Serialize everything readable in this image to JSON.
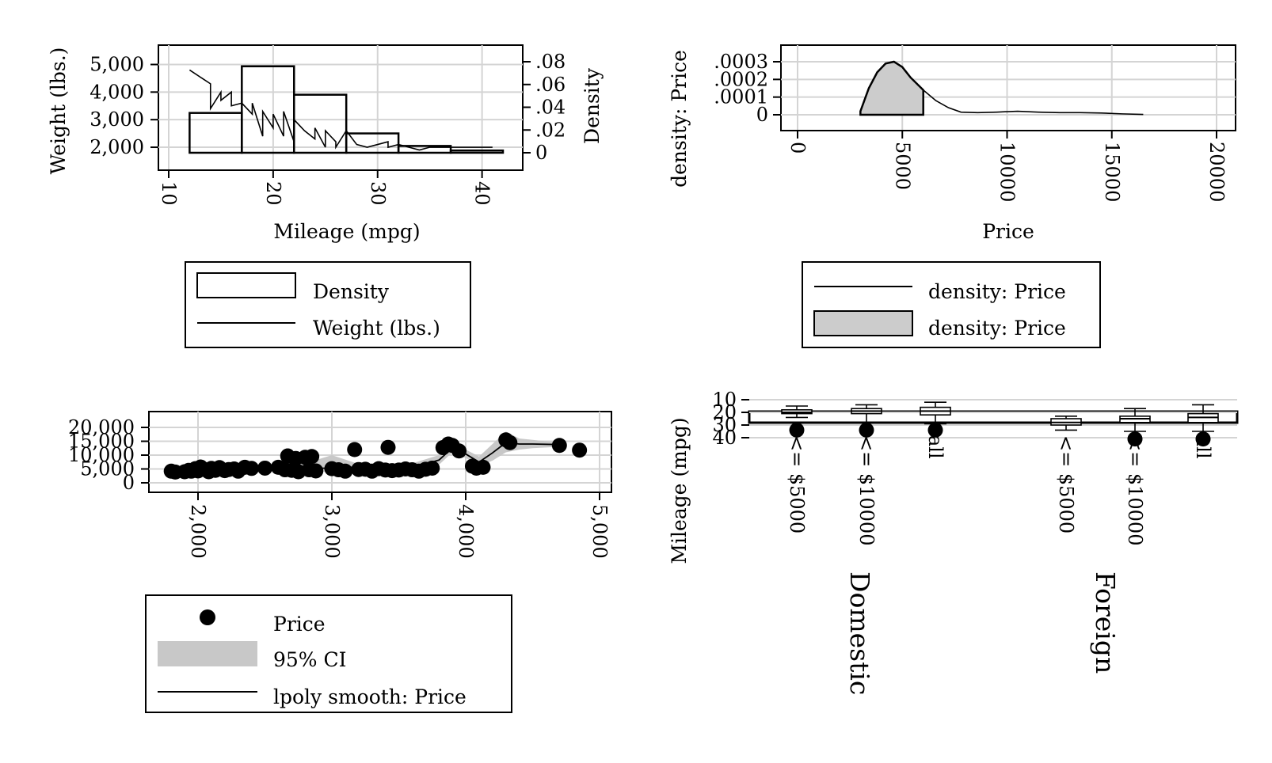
{
  "chart_data": [
    {
      "type": "bar",
      "panel": "top-left",
      "xlabel": "Mileage (mpg)",
      "ylabel": "Weight (lbs.)",
      "y2label": "Density",
      "xlim": [
        10,
        42
      ],
      "ylim": [
        1800,
        5100
      ],
      "y2lim": [
        0,
        0.08
      ],
      "xticks": [
        "10",
        "20",
        "30",
        "40"
      ],
      "yticks": [
        "2,000",
        "3,000",
        "4,000",
        "5,000"
      ],
      "y2ticks": [
        "0",
        ".02",
        ".04",
        ".06",
        ".08"
      ],
      "series": [
        {
          "name": "Density",
          "kind": "histogram",
          "bins": [
            {
              "from": 12,
              "to": 17,
              "value": 0.035
            },
            {
              "from": 17,
              "to": 22,
              "value": 0.076
            },
            {
              "from": 22,
              "to": 27,
              "value": 0.051
            },
            {
              "from": 27,
              "to": 32,
              "value": 0.017
            },
            {
              "from": 32,
              "to": 37,
              "value": 0.006
            },
            {
              "from": 37,
              "to": 42,
              "value": 0.002
            }
          ]
        },
        {
          "name": "Weight (lbs.)",
          "kind": "line",
          "x": [
            12,
            14,
            14,
            15,
            15,
            16,
            16,
            17,
            18,
            18,
            19,
            19,
            20,
            20,
            21,
            21,
            22,
            22,
            23,
            24,
            24,
            25,
            25,
            26,
            26,
            27,
            28,
            29,
            30,
            31,
            31,
            32,
            34,
            35,
            41
          ],
          "y": [
            4800,
            4300,
            3400,
            4000,
            3700,
            4000,
            3500,
            3600,
            3200,
            3600,
            2400,
            3300,
            2700,
            3200,
            2400,
            3300,
            2200,
            3000,
            2600,
            2300,
            2700,
            2000,
            2600,
            2200,
            2000,
            2600,
            2100,
            2000,
            2100,
            2200,
            2000,
            2100,
            1900,
            2000,
            2000
          ]
        }
      ],
      "legend": {
        "position": "bottom",
        "entries": [
          "Density",
          "Weight (lbs.)"
        ]
      }
    },
    {
      "type": "area",
      "panel": "top-right",
      "xlabel": "Price",
      "ylabel": "density: Price",
      "xlim": [
        0,
        20500
      ],
      "ylim": [
        0,
        0.00036
      ],
      "xticks": [
        "0",
        "5000",
        "10000",
        "15000",
        "20000"
      ],
      "yticks": [
        "0",
        ".0001",
        ".0002",
        ".0003"
      ],
      "series": [
        {
          "name": "density: Price",
          "kind": "line",
          "x": [
            3000,
            3400,
            3800,
            4200,
            4600,
            5000,
            5400,
            6000,
            6600,
            7200,
            7800,
            8600,
            9500,
            10500,
            11500,
            12500,
            13500,
            14500,
            15500,
            16500
          ],
          "y": [
            2e-05,
            0.00015,
            0.00024,
            0.00029,
            0.0003,
            0.00027,
            0.00021,
            0.00014,
            8e-05,
            4e-05,
            1.5e-05,
            1.2e-05,
            1.5e-05,
            2e-05,
            1.5e-05,
            1.2e-05,
            1.2e-05,
            1e-05,
            5e-06,
            2e-06
          ]
        },
        {
          "name": "density: Price",
          "kind": "area",
          "x": [
            3000,
            3400,
            3800,
            4200,
            4600,
            5000,
            5400,
            6000
          ],
          "y": [
            2e-05,
            0.00015,
            0.00024,
            0.00029,
            0.0003,
            0.00027,
            0.00021,
            0.00014
          ]
        }
      ],
      "legend": {
        "position": "bottom",
        "entries": [
          "density: Price",
          "density: Price"
        ]
      }
    },
    {
      "type": "scatter",
      "panel": "bottom-left",
      "xlabel": "",
      "ylabel": "",
      "xlim": [
        1650,
        5100
      ],
      "ylim": [
        -1000,
        22000
      ],
      "xticks": [
        "2,000",
        "3,000",
        "4,000",
        "5,000"
      ],
      "yticks": [
        "0",
        "5,000",
        "10,000",
        "15,000",
        "20,000"
      ],
      "series": [
        {
          "name": "Price",
          "kind": "points",
          "x": [
            1800,
            1830,
            1900,
            1930,
            1950,
            1980,
            2000,
            2020,
            2050,
            2080,
            2100,
            2130,
            2160,
            2200,
            2230,
            2270,
            2300,
            2350,
            2400,
            2500,
            2600,
            2650,
            2670,
            2700,
            2730,
            2750,
            2800,
            2830,
            2850,
            2880,
            3000,
            3050,
            3100,
            3170,
            3200,
            3250,
            3300,
            3350,
            3400,
            3420,
            3450,
            3500,
            3550,
            3600,
            3650,
            3700,
            3750,
            3830,
            3870,
            3900,
            3950,
            4050,
            4080,
            4130,
            4300,
            4330,
            4700,
            4850
          ],
          "y": [
            4200,
            3900,
            4000,
            4500,
            4200,
            5100,
            4300,
            5700,
            4800,
            4000,
            5200,
            4500,
            5500,
            4400,
            4800,
            5000,
            4200,
            5600,
            5200,
            5300,
            5600,
            4700,
            9700,
            4500,
            8800,
            4000,
            9200,
            4700,
            9500,
            4300,
            5100,
            4700,
            4200,
            12000,
            4800,
            4900,
            4200,
            5100,
            4600,
            12800,
            4400,
            4600,
            5000,
            4700,
            4200,
            4900,
            5300,
            12700,
            14000,
            13500,
            11500,
            6000,
            5300,
            5600,
            15500,
            14500,
            13500,
            11800
          ]
        },
        {
          "name": "95% CI",
          "kind": "band",
          "x": [
            1800,
            2000,
            2200,
            2400,
            2600,
            2800,
            3000,
            3200,
            3400,
            3600,
            3800,
            3900,
            4000,
            4100,
            4200,
            4300,
            4400,
            4500,
            4700
          ],
          "lo": [
            4300,
            4500,
            4300,
            5000,
            4800,
            4300,
            3800,
            4700,
            4200,
            4300,
            6500,
            11000,
            9000,
            6000,
            8000,
            11000,
            12000,
            12500,
            13000
          ],
          "hi": [
            5000,
            5400,
            5300,
            6300,
            6300,
            7000,
            10000,
            6800,
            6500,
            7000,
            10000,
            14000,
            12000,
            9500,
            14000,
            18500,
            16000,
            15500,
            14500
          ]
        },
        {
          "name": "lpoly smooth: Price",
          "kind": "line",
          "x": [
            1800,
            2000,
            2200,
            2400,
            2600,
            2800,
            3000,
            3200,
            3400,
            3600,
            3800,
            3900,
            4000,
            4100,
            4200,
            4300,
            4400,
            4500,
            4700
          ],
          "y": [
            4700,
            4900,
            4800,
            5700,
            5500,
            5600,
            5100,
            5800,
            5200,
            5400,
            8200,
            12600,
            10400,
            7500,
            10800,
            14500,
            14000,
            14000,
            13800
          ]
        }
      ],
      "legend": {
        "position": "bottom",
        "entries": [
          "Price",
          "95% CI",
          "lpoly smooth: Price"
        ]
      }
    },
    {
      "type": "box",
      "panel": "bottom-right",
      "ylabel": "Mileage (mpg)",
      "ylim": [
        10,
        41
      ],
      "yticks": [
        "10",
        "20",
        "30",
        "40"
      ],
      "groups": [
        {
          "label": "Domestic",
          "categories": [
            "<= $5000",
            "<= $10000",
            "all"
          ]
        },
        {
          "label": "Foreign",
          "categories": [
            "<= $5000",
            "<= $10000",
            "all"
          ]
        }
      ],
      "boxes": [
        {
          "group": "Domestic",
          "category": "<= $5000",
          "min": 15,
          "q1": 18,
          "median": 20,
          "q3": 21,
          "max": 24,
          "outliers": [
            34
          ]
        },
        {
          "group": "Domestic",
          "category": "<= $10000",
          "min": 14,
          "q1": 17,
          "median": 19,
          "q3": 21,
          "max": 28,
          "outliers": [
            34
          ]
        },
        {
          "group": "Domestic",
          "category": "all",
          "min": 12,
          "q1": 16,
          "median": 19,
          "q3": 22,
          "max": 29,
          "outliers": [
            34
          ]
        },
        {
          "group": "Foreign",
          "category": "<= $5000",
          "min": 23,
          "q1": 25,
          "median": 28,
          "q3": 30,
          "max": 34,
          "outliers": []
        },
        {
          "group": "Foreign",
          "category": "<= $10000",
          "min": 17,
          "q1": 23,
          "median": 25,
          "q3": 28,
          "max": 35,
          "outliers": [
            41
          ]
        },
        {
          "group": "Foreign",
          "category": "all",
          "min": 14,
          "q1": 21,
          "median": 24,
          "q3": 28,
          "max": 35,
          "outliers": [
            41
          ]
        }
      ]
    }
  ]
}
